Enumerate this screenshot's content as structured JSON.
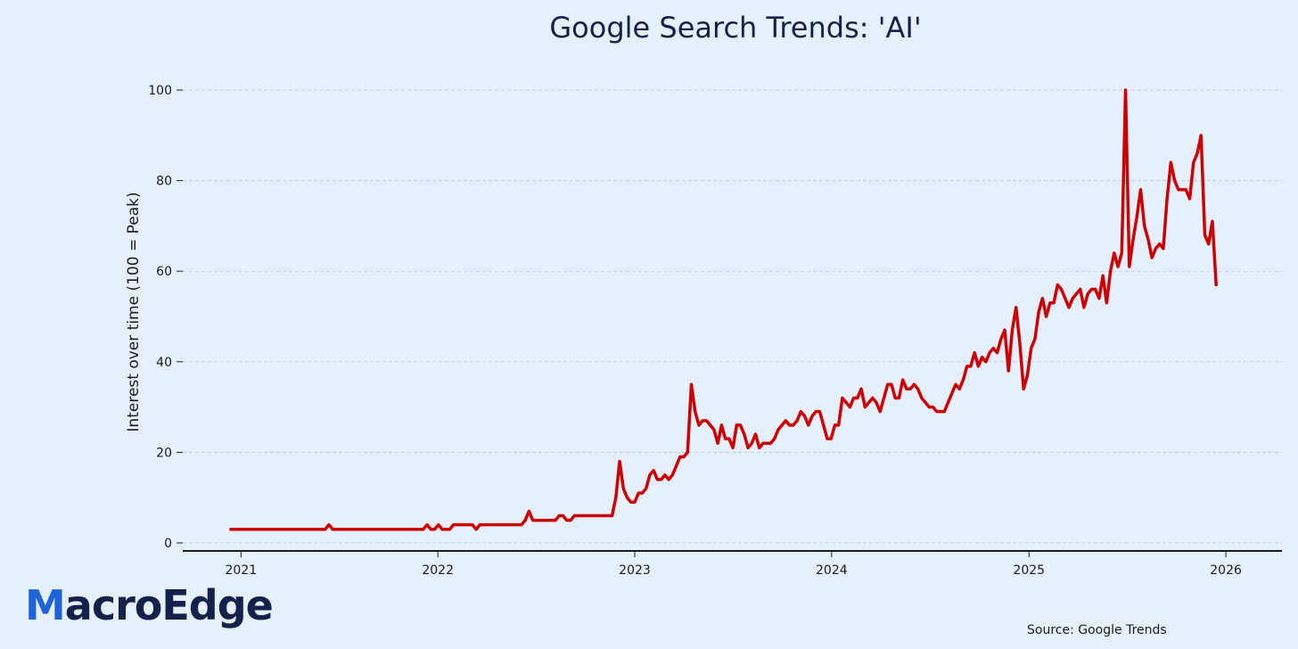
{
  "logo": {
    "first_letter": "M",
    "rest": "acroEdge"
  },
  "source_note": "Source: Google Trends",
  "colors": {
    "background": "#e6f0fc",
    "line": "#cc0000",
    "grid": "#b9cfe2",
    "title": "#14214a",
    "logo_blue": "#1f63d8",
    "logo_navy": "#14214a"
  },
  "chart_data": {
    "type": "line",
    "title": "Google Search Trends: 'AI'",
    "xlabel": "",
    "ylabel": "Interest over time (100 = Peak)",
    "x_ticks": [
      "2021",
      "2022",
      "2023",
      "2024",
      "2025",
      "2026"
    ],
    "y_ticks": [
      0,
      20,
      40,
      60,
      80,
      100
    ],
    "ylim": [
      0,
      100
    ],
    "xlim": [
      "2020-09-15",
      "2026-04-15"
    ],
    "grid": "horizontal dashed",
    "series": [
      {
        "values": [
          [
            "2020-12-13",
            3
          ],
          [
            "2021-01-17",
            3
          ],
          [
            "2021-02-21",
            3
          ],
          [
            "2021-03-28",
            3
          ],
          [
            "2021-05-02",
            3
          ],
          [
            "2021-06-06",
            3
          ],
          [
            "2021-06-13",
            4
          ],
          [
            "2021-06-20",
            3
          ],
          [
            "2021-07-25",
            3
          ],
          [
            "2021-08-29",
            3
          ],
          [
            "2021-10-03",
            3
          ],
          [
            "2021-11-07",
            3
          ],
          [
            "2021-12-05",
            3
          ],
          [
            "2021-12-12",
            4
          ],
          [
            "2021-12-19",
            3
          ],
          [
            "2021-12-26",
            3
          ],
          [
            "2022-01-02",
            4
          ],
          [
            "2022-01-09",
            3
          ],
          [
            "2022-01-23",
            3
          ],
          [
            "2022-01-30",
            4
          ],
          [
            "2022-02-13",
            4
          ],
          [
            "2022-03-06",
            4
          ],
          [
            "2022-03-13",
            3
          ],
          [
            "2022-03-20",
            4
          ],
          [
            "2022-04-17",
            4
          ],
          [
            "2022-05-22",
            4
          ],
          [
            "2022-06-05",
            4
          ],
          [
            "2022-06-12",
            5
          ],
          [
            "2022-06-19",
            7
          ],
          [
            "2022-06-26",
            5
          ],
          [
            "2022-07-31",
            5
          ],
          [
            "2022-08-07",
            5
          ],
          [
            "2022-08-14",
            6
          ],
          [
            "2022-08-21",
            6
          ],
          [
            "2022-08-28",
            5
          ],
          [
            "2022-09-04",
            5
          ],
          [
            "2022-09-11",
            6
          ],
          [
            "2022-10-16",
            6
          ],
          [
            "2022-11-20",
            6
          ],
          [
            "2022-11-27",
            10
          ],
          [
            "2022-12-04",
            18
          ],
          [
            "2022-12-11",
            12
          ],
          [
            "2022-12-18",
            10
          ],
          [
            "2022-12-25",
            9
          ],
          [
            "2023-01-01",
            9
          ],
          [
            "2023-01-08",
            11
          ],
          [
            "2023-01-15",
            11
          ],
          [
            "2023-01-22",
            12
          ],
          [
            "2023-01-29",
            15
          ],
          [
            "2023-02-05",
            16
          ],
          [
            "2023-02-12",
            14
          ],
          [
            "2023-02-19",
            14
          ],
          [
            "2023-02-26",
            15
          ],
          [
            "2023-03-05",
            14
          ],
          [
            "2023-03-12",
            15
          ],
          [
            "2023-03-19",
            17
          ],
          [
            "2023-03-26",
            19
          ],
          [
            "2023-04-02",
            19
          ],
          [
            "2023-04-09",
            20
          ],
          [
            "2023-04-16",
            35
          ],
          [
            "2023-04-23",
            29
          ],
          [
            "2023-04-30",
            26
          ],
          [
            "2023-05-07",
            27
          ],
          [
            "2023-05-14",
            27
          ],
          [
            "2023-05-21",
            26
          ],
          [
            "2023-05-28",
            25
          ],
          [
            "2023-06-04",
            22
          ],
          [
            "2023-06-11",
            26
          ],
          [
            "2023-06-18",
            23
          ],
          [
            "2023-06-25",
            23
          ],
          [
            "2023-07-02",
            21
          ],
          [
            "2023-07-09",
            26
          ],
          [
            "2023-07-16",
            26
          ],
          [
            "2023-07-23",
            24
          ],
          [
            "2023-07-30",
            21
          ],
          [
            "2023-08-06",
            22
          ],
          [
            "2023-08-13",
            24
          ],
          [
            "2023-08-20",
            21
          ],
          [
            "2023-08-27",
            22
          ],
          [
            "2023-09-03",
            22
          ],
          [
            "2023-09-10",
            22
          ],
          [
            "2023-09-17",
            23
          ],
          [
            "2023-09-24",
            25
          ],
          [
            "2023-10-01",
            26
          ],
          [
            "2023-10-08",
            27
          ],
          [
            "2023-10-15",
            26
          ],
          [
            "2023-10-22",
            26
          ],
          [
            "2023-10-29",
            27
          ],
          [
            "2023-11-05",
            29
          ],
          [
            "2023-11-12",
            28
          ],
          [
            "2023-11-19",
            26
          ],
          [
            "2023-11-26",
            28
          ],
          [
            "2023-12-03",
            29
          ],
          [
            "2023-12-10",
            29
          ],
          [
            "2023-12-17",
            26
          ],
          [
            "2023-12-24",
            23
          ],
          [
            "2023-12-31",
            23
          ],
          [
            "2024-01-07",
            26
          ],
          [
            "2024-01-14",
            26
          ],
          [
            "2024-01-21",
            32
          ],
          [
            "2024-01-28",
            31
          ],
          [
            "2024-02-04",
            30
          ],
          [
            "2024-02-11",
            32
          ],
          [
            "2024-02-18",
            32
          ],
          [
            "2024-02-25",
            34
          ],
          [
            "2024-03-03",
            30
          ],
          [
            "2024-03-10",
            31
          ],
          [
            "2024-03-17",
            32
          ],
          [
            "2024-03-24",
            31
          ],
          [
            "2024-03-31",
            29
          ],
          [
            "2024-04-07",
            32
          ],
          [
            "2024-04-14",
            35
          ],
          [
            "2024-04-21",
            35
          ],
          [
            "2024-04-28",
            32
          ],
          [
            "2024-05-05",
            32
          ],
          [
            "2024-05-12",
            36
          ],
          [
            "2024-05-19",
            34
          ],
          [
            "2024-05-26",
            34
          ],
          [
            "2024-06-02",
            35
          ],
          [
            "2024-06-09",
            34
          ],
          [
            "2024-06-16",
            32
          ],
          [
            "2024-06-23",
            31
          ],
          [
            "2024-06-30",
            30
          ],
          [
            "2024-07-07",
            30
          ],
          [
            "2024-07-14",
            29
          ],
          [
            "2024-07-21",
            29
          ],
          [
            "2024-07-28",
            29
          ],
          [
            "2024-08-04",
            31
          ],
          [
            "2024-08-11",
            33
          ],
          [
            "2024-08-18",
            35
          ],
          [
            "2024-08-25",
            34
          ],
          [
            "2024-09-01",
            36
          ],
          [
            "2024-09-08",
            39
          ],
          [
            "2024-09-15",
            39
          ],
          [
            "2024-09-22",
            42
          ],
          [
            "2024-09-29",
            39
          ],
          [
            "2024-10-06",
            41
          ],
          [
            "2024-10-13",
            40
          ],
          [
            "2024-10-20",
            42
          ],
          [
            "2024-10-27",
            43
          ],
          [
            "2024-11-03",
            42
          ],
          [
            "2024-11-10",
            45
          ],
          [
            "2024-11-17",
            47
          ],
          [
            "2024-11-24",
            38
          ],
          [
            "2024-12-01",
            47
          ],
          [
            "2024-12-08",
            52
          ],
          [
            "2024-12-15",
            44
          ],
          [
            "2024-12-22",
            34
          ],
          [
            "2024-12-29",
            37
          ],
          [
            "2025-01-05",
            43
          ],
          [
            "2025-01-12",
            45
          ],
          [
            "2025-01-19",
            51
          ],
          [
            "2025-01-26",
            54
          ],
          [
            "2025-02-02",
            50
          ],
          [
            "2025-02-09",
            53
          ],
          [
            "2025-02-16",
            53
          ],
          [
            "2025-02-23",
            57
          ],
          [
            "2025-03-02",
            56
          ],
          [
            "2025-03-09",
            54
          ],
          [
            "2025-03-16",
            52
          ],
          [
            "2025-03-23",
            54
          ],
          [
            "2025-03-30",
            55
          ],
          [
            "2025-04-06",
            56
          ],
          [
            "2025-04-13",
            52
          ],
          [
            "2025-04-20",
            55
          ],
          [
            "2025-04-27",
            56
          ],
          [
            "2025-05-04",
            56
          ],
          [
            "2025-05-11",
            54
          ],
          [
            "2025-05-18",
            59
          ],
          [
            "2025-05-25",
            53
          ],
          [
            "2025-06-01",
            60
          ],
          [
            "2025-06-08",
            64
          ],
          [
            "2025-06-15",
            61
          ],
          [
            "2025-06-22",
            64
          ],
          [
            "2025-06-29",
            100
          ],
          [
            "2025-07-06",
            61
          ],
          [
            "2025-07-13",
            67
          ],
          [
            "2025-07-20",
            72
          ],
          [
            "2025-07-27",
            78
          ],
          [
            "2025-08-03",
            70
          ],
          [
            "2025-08-10",
            67
          ],
          [
            "2025-08-17",
            63
          ],
          [
            "2025-08-24",
            65
          ],
          [
            "2025-08-31",
            66
          ],
          [
            "2025-09-07",
            65
          ],
          [
            "2025-09-14",
            76
          ],
          [
            "2025-09-21",
            84
          ],
          [
            "2025-09-28",
            80
          ],
          [
            "2025-10-05",
            78
          ],
          [
            "2025-10-12",
            78
          ],
          [
            "2025-10-19",
            78
          ],
          [
            "2025-10-26",
            76
          ],
          [
            "2025-11-02",
            84
          ],
          [
            "2025-11-09",
            86
          ],
          [
            "2025-11-16",
            90
          ],
          [
            "2025-11-23",
            68
          ],
          [
            "2025-11-30",
            66
          ],
          [
            "2025-12-07",
            71
          ],
          [
            "2025-12-14",
            57
          ]
        ]
      }
    ]
  }
}
